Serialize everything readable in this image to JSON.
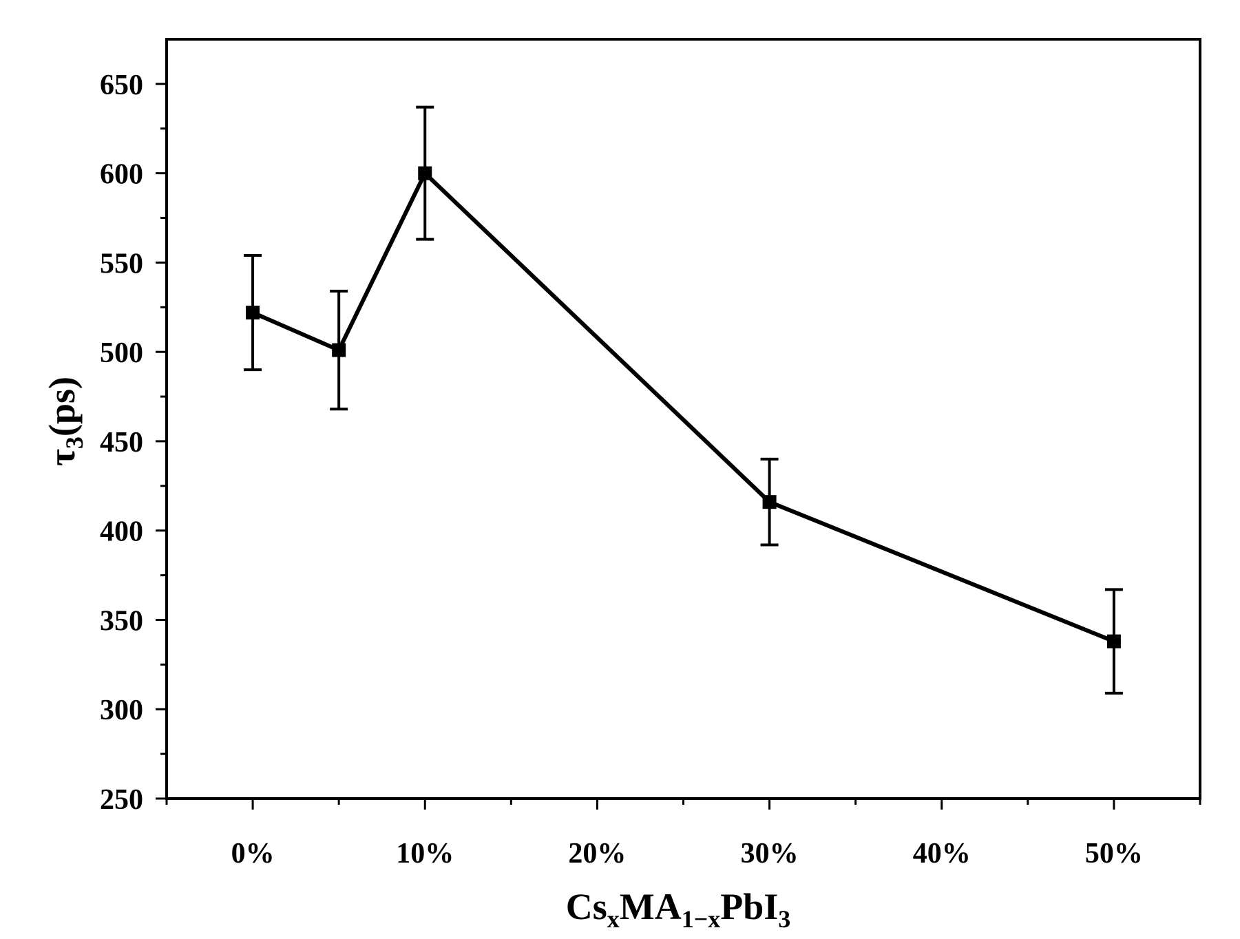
{
  "chart_data": {
    "type": "line",
    "title": "",
    "x": [
      0,
      5,
      10,
      30,
      50
    ],
    "series": [
      {
        "name": "tau3",
        "values": [
          522,
          501,
          600,
          416,
          338
        ],
        "errors": [
          32,
          33,
          37,
          24,
          29
        ],
        "marker": "square",
        "color": "#000000"
      }
    ],
    "xlim": [
      -5,
      55
    ],
    "ylim": [
      250,
      675
    ],
    "x_major_ticks": [
      0,
      10,
      20,
      30,
      40,
      50
    ],
    "x_minor_ticks": [
      -5,
      5,
      15,
      25,
      35,
      45,
      55
    ],
    "x_tick_labels": [
      "0%",
      "10%",
      "20%",
      "30%",
      "40%",
      "50%"
    ],
    "y_major_ticks": [
      250,
      300,
      350,
      400,
      450,
      500,
      550,
      600,
      650
    ],
    "y_minor_ticks": [
      275,
      325,
      375,
      425,
      475,
      525,
      575,
      625
    ],
    "y_tick_labels": [
      "250",
      "300",
      "350",
      "400",
      "450",
      "500",
      "550",
      "600",
      "650"
    ],
    "xlabel": {
      "base1": "Cs",
      "sub1": "x",
      "base2": "MA",
      "sub2": "1−x",
      "base3": "PbI",
      "sub3": "3"
    },
    "ylabel": {
      "base1": "τ",
      "sub1": "3",
      "base2": "(ps)"
    },
    "grid": false,
    "legend": "none"
  }
}
